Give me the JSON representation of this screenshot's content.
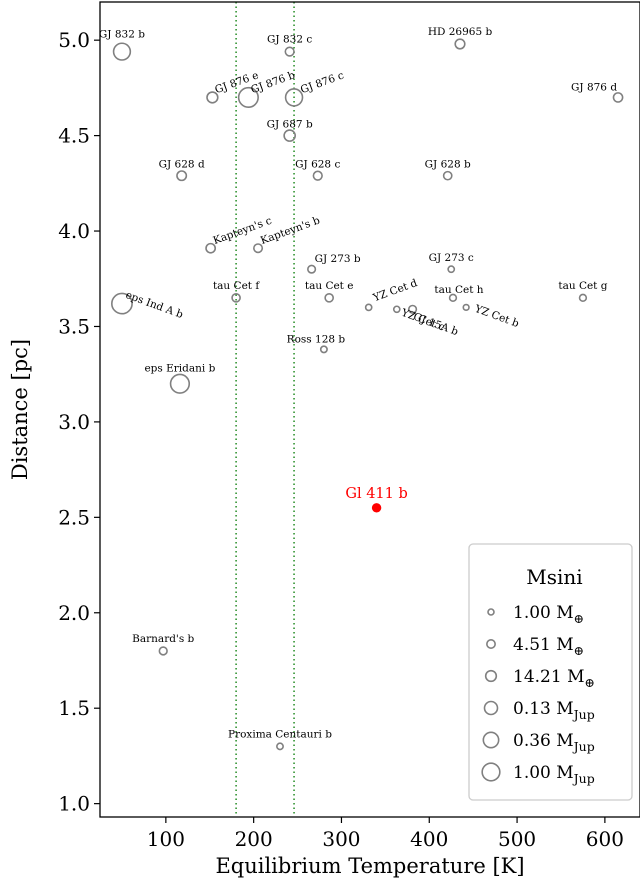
{
  "chart_data": {
    "type": "scatter",
    "xlabel": "Equilibrium Temperature [K]",
    "ylabel": "Distance [pc]",
    "xlim": [
      25,
      640
    ],
    "ylim": [
      0.93,
      5.2
    ],
    "xticks": [
      100,
      200,
      300,
      400,
      500,
      600
    ],
    "yticks": [
      1.0,
      1.5,
      2.0,
      2.5,
      3.0,
      3.5,
      4.0,
      4.5,
      5.0
    ],
    "xtick_labels": [
      "100",
      "200",
      "300",
      "400",
      "500",
      "600"
    ],
    "ytick_labels": [
      "1.0",
      "1.5",
      "2.0",
      "2.5",
      "3.0",
      "3.5",
      "4.0",
      "4.5",
      "5.0"
    ],
    "grid": false,
    "vlines": [
      180,
      246
    ],
    "vline_color": "#228b22",
    "marker_color": "#808080",
    "highlight_color": "#ff0000",
    "points": [
      {
        "name": "GJ 832 b",
        "x": 50,
        "y": 4.94,
        "msini_mearth": 215,
        "label_dx": 0,
        "label_dy": -14,
        "rotate": 0
      },
      {
        "name": "GJ 832 c",
        "x": 241,
        "y": 4.94,
        "msini_mearth": 5.4,
        "label_dx": 0,
        "label_dy": -9,
        "rotate": 0
      },
      {
        "name": "HD 26965 b",
        "x": 435,
        "y": 4.98,
        "msini_mearth": 8.5,
        "label_dx": 0,
        "label_dy": -9,
        "rotate": 0
      },
      {
        "name": "GJ 876 e",
        "x": 153,
        "y": 4.7,
        "msini_mearth": 15,
        "label_dx": 4,
        "label_dy": -4,
        "rotate": -20
      },
      {
        "name": "GJ 876 b",
        "x": 194,
        "y": 4.7,
        "msini_mearth": 720,
        "label_dx": 4,
        "label_dy": -4,
        "rotate": -20
      },
      {
        "name": "GJ 876 c",
        "x": 246,
        "y": 4.7,
        "msini_mearth": 230,
        "label_dx": 8,
        "label_dy": -4,
        "rotate": -20
      },
      {
        "name": "GJ 876 d",
        "x": 615,
        "y": 4.7,
        "msini_mearth": 6.8,
        "label_dx": -24,
        "label_dy": -7,
        "rotate": 0
      },
      {
        "name": "GJ 687 b",
        "x": 241,
        "y": 4.5,
        "msini_mearth": 17,
        "label_dx": 0,
        "label_dy": -8,
        "rotate": 0
      },
      {
        "name": "GJ 628 d",
        "x": 118,
        "y": 4.29,
        "msini_mearth": 7.7,
        "label_dx": 0,
        "label_dy": -8,
        "rotate": 0
      },
      {
        "name": "GJ 628 c",
        "x": 273,
        "y": 4.29,
        "msini_mearth": 5.4,
        "label_dx": 0,
        "label_dy": -8,
        "rotate": 0
      },
      {
        "name": "GJ 628 b",
        "x": 421,
        "y": 4.29,
        "msini_mearth": 4.1,
        "label_dx": 0,
        "label_dy": -8,
        "rotate": 0
      },
      {
        "name": "Kapteyn's c",
        "x": 151,
        "y": 3.91,
        "msini_mearth": 7.0,
        "label_dx": 4,
        "label_dy": -4,
        "rotate": -20
      },
      {
        "name": "Kapteyn's b",
        "x": 205,
        "y": 3.91,
        "msini_mearth": 4.8,
        "label_dx": 4,
        "label_dy": -4,
        "rotate": -20
      },
      {
        "name": "GJ 273 b",
        "x": 266,
        "y": 3.8,
        "msini_mearth": 2.9,
        "label_dx": 26,
        "label_dy": -7,
        "rotate": 0
      },
      {
        "name": "GJ 273 c",
        "x": 425,
        "y": 3.8,
        "msini_mearth": 1.2,
        "label_dx": 0,
        "label_dy": -8,
        "rotate": 0
      },
      {
        "name": "tau Cet f",
        "x": 180,
        "y": 3.65,
        "msini_mearth": 3.9,
        "label_dx": 0,
        "label_dy": -9,
        "rotate": 0
      },
      {
        "name": "tau Cet e",
        "x": 286,
        "y": 3.65,
        "msini_mearth": 3.9,
        "label_dx": 0,
        "label_dy": -9,
        "rotate": 0
      },
      {
        "name": "tau Cet h",
        "x": 427,
        "y": 3.65,
        "msini_mearth": 1.8,
        "label_dx": 6,
        "label_dy": -5,
        "rotate": 0
      },
      {
        "name": "tau Cet g",
        "x": 575,
        "y": 3.65,
        "msini_mearth": 1.8,
        "label_dx": 0,
        "label_dy": -9,
        "rotate": 0
      },
      {
        "name": "eps Ind A b",
        "x": 50,
        "y": 3.62,
        "msini_mearth": 1000,
        "label_dx": 3,
        "label_dy": -6,
        "rotate": 20
      },
      {
        "name": "YZ Cet d",
        "x": 331,
        "y": 3.6,
        "msini_mearth": 1.1,
        "label_dx": 6,
        "label_dy": -6,
        "rotate": -20
      },
      {
        "name": "YZ Cet c",
        "x": 363,
        "y": 3.59,
        "msini_mearth": 1.1,
        "label_dx": 4,
        "label_dy": 6,
        "rotate": 20
      },
      {
        "name": "GJ 15A b",
        "x": 381,
        "y": 3.59,
        "msini_mearth": 3.0,
        "label_dx": 0,
        "label_dy": 10,
        "rotate": 20
      },
      {
        "name": "YZ Cet b",
        "x": 442,
        "y": 3.6,
        "msini_mearth": 0.75,
        "label_dx": 8,
        "label_dy": 4,
        "rotate": 20
      },
      {
        "name": "Ross 128 b",
        "x": 280,
        "y": 3.38,
        "msini_mearth": 1.35,
        "label_dx": -8,
        "label_dy": -7,
        "rotate": 0
      },
      {
        "name": "eps Eridani b",
        "x": 116,
        "y": 3.2,
        "msini_mearth": 490,
        "label_dx": 0,
        "label_dy": -12,
        "rotate": 0
      },
      {
        "name": "Barnard's b",
        "x": 97,
        "y": 1.8,
        "msini_mearth": 3.2,
        "label_dx": 0,
        "label_dy": -9,
        "rotate": 0
      },
      {
        "name": "Proxima Centauri b",
        "x": 230,
        "y": 1.3,
        "msini_mearth": 1.27,
        "label_dx": 0,
        "label_dy": -9,
        "rotate": 0
      }
    ],
    "highlight": {
      "name": "Gl 411 b",
      "x": 340,
      "y": 2.55,
      "msini_mearth": 2.7
    },
    "legend": {
      "title": "Msini",
      "position": "lower right",
      "entries": [
        {
          "value": "1.00",
          "unit": "M",
          "sub": "⊕",
          "msini_mearth": 1.0
        },
        {
          "value": "4.51",
          "unit": "M",
          "sub": "⊕",
          "msini_mearth": 4.51
        },
        {
          "value": "14.21",
          "unit": "M",
          "sub": "⊕",
          "msini_mearth": 14.21
        },
        {
          "value": "0.13",
          "unit": "M",
          "sub": "Jup",
          "msini_mearth": 41.3
        },
        {
          "value": "0.36",
          "unit": "M",
          "sub": "Jup",
          "msini_mearth": 114.4
        },
        {
          "value": "1.00",
          "unit": "M",
          "sub": "Jup",
          "msini_mearth": 317.8
        }
      ]
    }
  }
}
